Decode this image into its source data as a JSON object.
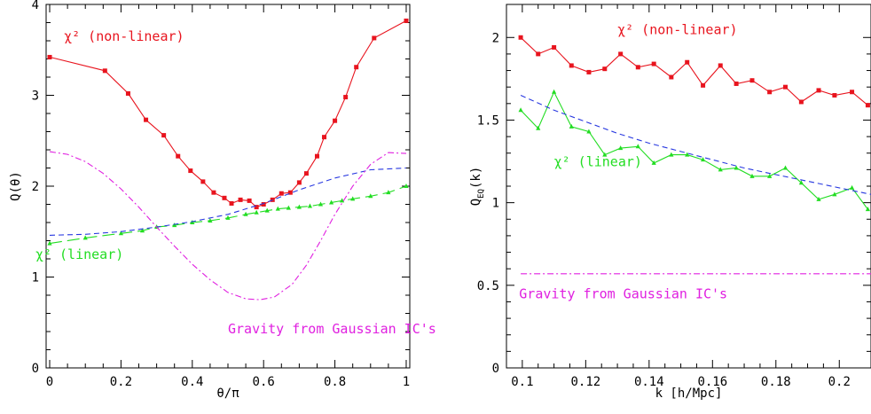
{
  "chart_data": [
    {
      "type": "line",
      "xlabel": "θ/π",
      "ylabel": "Q(θ)",
      "xlim": [
        -0.01,
        1.01
      ],
      "ylim": [
        0,
        4
      ],
      "xticks": [
        0,
        0.2,
        0.4,
        0.6,
        0.8,
        1
      ],
      "xtick_labels": [
        "0",
        "0.2",
        "0.4",
        "0.6",
        "0.8",
        "1"
      ],
      "yticks": [
        0,
        1,
        2,
        3,
        4
      ],
      "ytick_labels": [
        "0",
        "1",
        "2",
        "3",
        "4"
      ],
      "grid": false,
      "series": [
        {
          "label": "χ² (non-linear)",
          "color": "#e8141e",
          "marker": "square",
          "style": "solid",
          "x": [
            0,
            0.155,
            0.22,
            0.27,
            0.32,
            0.36,
            0.395,
            0.43,
            0.46,
            0.49,
            0.51,
            0.535,
            0.56,
            0.58,
            0.6,
            0.625,
            0.65,
            0.675,
            0.7,
            0.72,
            0.75,
            0.77,
            0.8,
            0.83,
            0.86,
            0.91,
            1.0
          ],
          "y": [
            3.42,
            3.27,
            3.02,
            2.73,
            2.56,
            2.33,
            2.17,
            2.05,
            1.93,
            1.87,
            1.81,
            1.85,
            1.84,
            1.77,
            1.8,
            1.85,
            1.92,
            1.93,
            2.04,
            2.14,
            2.33,
            2.54,
            2.72,
            2.98,
            3.31,
            3.63,
            3.82
          ]
        },
        {
          "label": "χ² (linear)",
          "color": "#22dd22",
          "marker": "triangle",
          "style": "long-dash",
          "x": [
            0,
            0.1,
            0.2,
            0.26,
            0.3,
            0.35,
            0.4,
            0.45,
            0.5,
            0.55,
            0.58,
            0.61,
            0.64,
            0.67,
            0.7,
            0.73,
            0.76,
            0.79,
            0.82,
            0.85,
            0.9,
            0.95,
            1.0
          ],
          "y": [
            1.37,
            1.43,
            1.48,
            1.51,
            1.55,
            1.57,
            1.6,
            1.62,
            1.65,
            1.69,
            1.71,
            1.73,
            1.75,
            1.76,
            1.77,
            1.78,
            1.8,
            1.82,
            1.84,
            1.86,
            1.89,
            1.93,
            2.0
          ]
        },
        {
          "label": "",
          "color": "#2838e0",
          "marker": "none",
          "style": "short-dash",
          "x": [
            0,
            0.1,
            0.2,
            0.3,
            0.4,
            0.5,
            0.6,
            0.7,
            0.8,
            0.9,
            1.0
          ],
          "y": [
            1.46,
            1.47,
            1.5,
            1.55,
            1.61,
            1.69,
            1.81,
            1.96,
            2.09,
            2.18,
            2.2
          ]
        },
        {
          "label": "Gravity from Gaussian IC's",
          "color": "#e020e0",
          "marker": "none",
          "style": "dash-dot",
          "x": [
            0,
            0.05,
            0.1,
            0.15,
            0.2,
            0.25,
            0.3,
            0.35,
            0.4,
            0.45,
            0.5,
            0.55,
            0.59,
            0.63,
            0.68,
            0.72,
            0.76,
            0.8,
            0.85,
            0.9,
            0.95,
            1.0
          ],
          "y": [
            2.38,
            2.35,
            2.27,
            2.14,
            1.97,
            1.77,
            1.55,
            1.34,
            1.14,
            0.97,
            0.83,
            0.76,
            0.75,
            0.78,
            0.92,
            1.13,
            1.4,
            1.69,
            2.0,
            2.24,
            2.37,
            2.36
          ]
        }
      ],
      "annotations": [
        {
          "text": "χ² (non-linear)",
          "x": 0.04,
          "y": 3.6,
          "color": "#e8141e"
        },
        {
          "text": "χ² (linear)",
          "x": -0.04,
          "y": 1.2,
          "color": "#22dd22"
        },
        {
          "text": "Gravity from Gaussian IC's",
          "x": 0.5,
          "y": 0.38,
          "color": "#e020e0"
        }
      ]
    },
    {
      "type": "line",
      "xlabel": "k [h/Mpc]",
      "ylabel_main": "Q",
      "ylabel_sub": "EQ",
      "ylabel_tail": "(k)",
      "xlim": [
        0.095,
        0.21
      ],
      "ylim": [
        0,
        2.2
      ],
      "xticks": [
        0.1,
        0.12,
        0.14,
        0.16,
        0.18,
        0.2
      ],
      "xtick_labels": [
        "0.1",
        "0.12",
        "0.14",
        "0.16",
        "0.18",
        "0.2"
      ],
      "yticks": [
        0,
        0.5,
        1,
        1.5,
        2
      ],
      "ytick_labels": [
        "0",
        "0.5",
        "1",
        "1.5",
        "2"
      ],
      "grid": false,
      "series": [
        {
          "label": "χ² (non-linear)",
          "color": "#e8141e",
          "marker": "square",
          "style": "solid",
          "x": [
            0.0995,
            0.105,
            0.11,
            0.1155,
            0.121,
            0.126,
            0.131,
            0.1365,
            0.1415,
            0.147,
            0.152,
            0.157,
            0.1625,
            0.1675,
            0.1725,
            0.178,
            0.183,
            0.188,
            0.1935,
            0.1985,
            0.204,
            0.209
          ],
          "y": [
            2.0,
            1.9,
            1.94,
            1.83,
            1.79,
            1.81,
            1.9,
            1.82,
            1.84,
            1.76,
            1.85,
            1.71,
            1.83,
            1.72,
            1.74,
            1.67,
            1.7,
            1.61,
            1.68,
            1.65,
            1.67,
            1.59
          ]
        },
        {
          "label": "χ² (linear)",
          "color": "#22dd22",
          "marker": "triangle",
          "style": "solid",
          "x": [
            0.0995,
            0.105,
            0.11,
            0.1155,
            0.121,
            0.126,
            0.131,
            0.1365,
            0.1415,
            0.147,
            0.152,
            0.157,
            0.1625,
            0.1675,
            0.1725,
            0.178,
            0.183,
            0.188,
            0.1935,
            0.1985,
            0.204,
            0.209
          ],
          "y": [
            1.56,
            1.45,
            1.67,
            1.46,
            1.43,
            1.29,
            1.33,
            1.34,
            1.24,
            1.29,
            1.29,
            1.26,
            1.2,
            1.21,
            1.16,
            1.16,
            1.21,
            1.12,
            1.02,
            1.05,
            1.09,
            0.96
          ]
        },
        {
          "label": "",
          "color": "#2838e0",
          "marker": "none",
          "style": "short-dash",
          "x": [
            0.0995,
            0.11,
            0.12,
            0.13,
            0.14,
            0.15,
            0.16,
            0.17,
            0.18,
            0.19,
            0.2,
            0.21
          ],
          "y": [
            1.65,
            1.56,
            1.49,
            1.42,
            1.36,
            1.31,
            1.26,
            1.21,
            1.17,
            1.13,
            1.09,
            1.05
          ]
        },
        {
          "label": "Gravity from Gaussian IC's",
          "color": "#e020e0",
          "marker": "none",
          "style": "dash-dot",
          "x": [
            0.0995,
            0.21
          ],
          "y": [
            0.57,
            0.57
          ]
        }
      ],
      "annotations": [
        {
          "text": "χ² (non-linear)",
          "x": 0.13,
          "y": 2.02,
          "color": "#e8141e"
        },
        {
          "text": "χ² (linear)",
          "x": 0.11,
          "y": 1.22,
          "color": "#22dd22"
        },
        {
          "text": "Gravity from Gaussian IC's",
          "x": 0.099,
          "y": 0.42,
          "color": "#e020e0"
        }
      ]
    }
  ]
}
